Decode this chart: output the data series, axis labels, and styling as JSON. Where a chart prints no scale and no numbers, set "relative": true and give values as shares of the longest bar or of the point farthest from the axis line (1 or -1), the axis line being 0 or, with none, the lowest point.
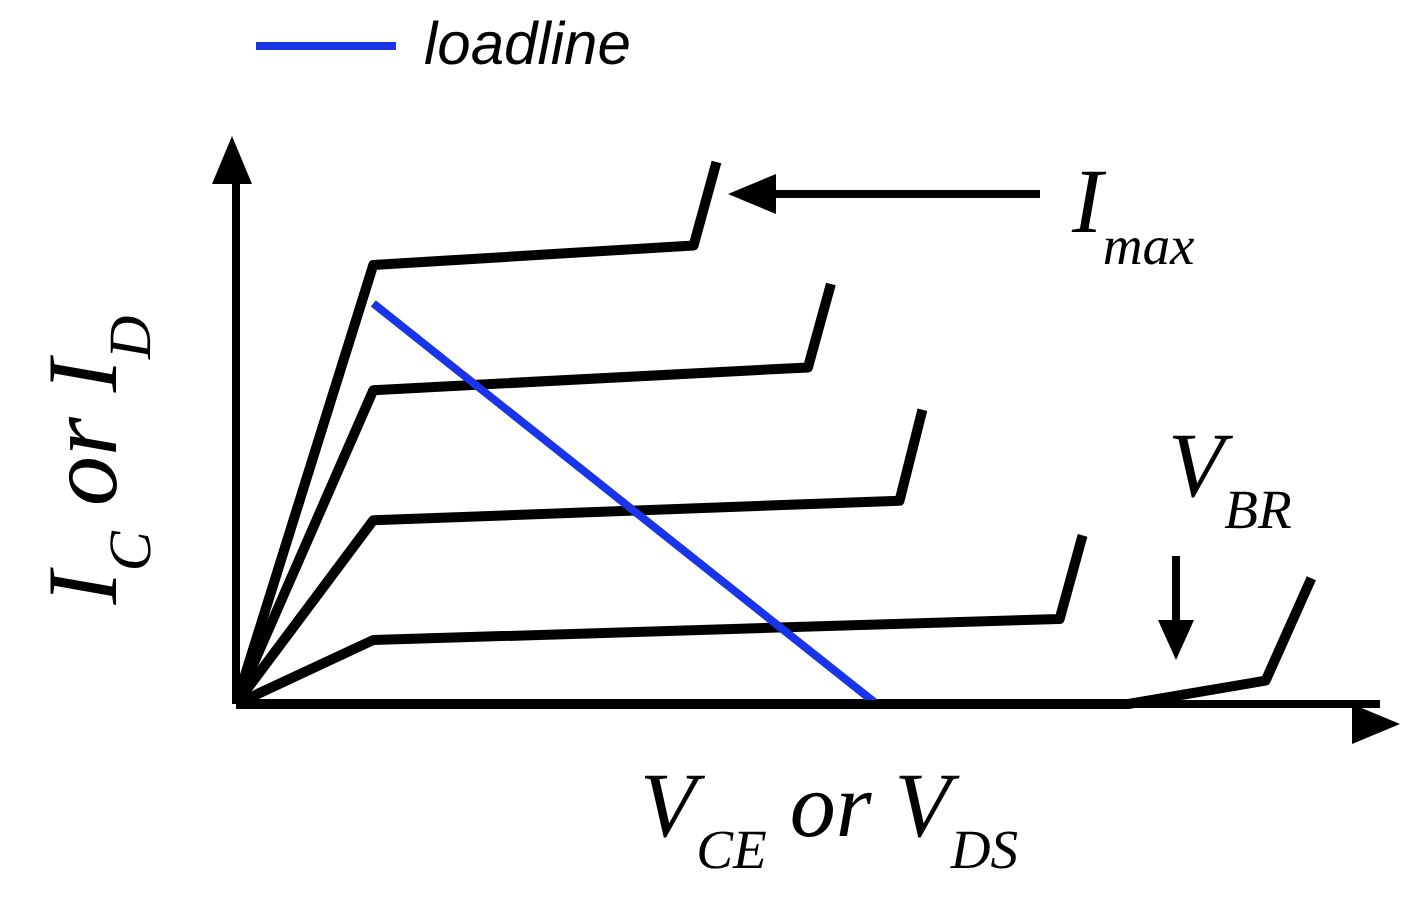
{
  "chart_data": {
    "type": "line",
    "relative": true,
    "xlabel": "V$_{CE}$ or V$_{DS}$",
    "ylabel": "I$_{C}$ or I$_{D}$",
    "legend": "top",
    "annotations": [
      "I$_{max}$",
      "V$_{BR}$"
    ],
    "categories": [
      null,
      null,
      null,
      null,
      null,
      null,
      null,
      null,
      null,
      null,
      null,
      null,
      null,
      null,
      null,
      null,
      null,
      null,
      null,
      null,
      null,
      null,
      null,
      null,
      null,
      null,
      null,
      null,
      null,
      null,
      null,
      null,
      null,
      null,
      null,
      null,
      null,
      null,
      null,
      null,
      null,
      null,
      null,
      null,
      null,
      null,
      null,
      null,
      null,
      null,
      null
    ],
    "series": [
      {
        "color": "#000000",
        "values": [
          0,
          null,
          null,
          null,
          null,
          null,
          0.81,
          null,
          null,
          null,
          null,
          null,
          null,
          null,
          null,
          null,
          null,
          null,
          null,
          null,
          0.846,
          1,
          null,
          null,
          null,
          null,
          null,
          null,
          null,
          null,
          null,
          null,
          null,
          null,
          null,
          null,
          null,
          null,
          null,
          null,
          null,
          null,
          null,
          null,
          null,
          null,
          null,
          null,
          null,
          null,
          null
        ]
      },
      {
        "color": "#000000",
        "values": [
          0,
          null,
          null,
          null,
          null,
          null,
          0.579,
          null,
          null,
          null,
          null,
          null,
          null,
          null,
          null,
          null,
          null,
          null,
          null,
          null,
          null,
          null,
          null,
          null,
          null,
          0.621,
          0.775,
          null,
          null,
          null,
          null,
          null,
          null,
          null,
          null,
          null,
          null,
          null,
          null,
          null,
          null,
          null,
          null,
          null,
          null,
          null,
          null,
          null,
          null,
          null,
          null
        ]
      },
      {
        "color": "#000000",
        "values": [
          0,
          null,
          null,
          null,
          null,
          null,
          0.339,
          null,
          null,
          null,
          null,
          null,
          null,
          null,
          null,
          null,
          null,
          null,
          null,
          null,
          null,
          null,
          null,
          null,
          null,
          null,
          null,
          null,
          null,
          0.375,
          0.543,
          null,
          null,
          null,
          null,
          null,
          null,
          null,
          null,
          null,
          null,
          null,
          null,
          null,
          null,
          null,
          null,
          null,
          null,
          null,
          null
        ]
      },
      {
        "color": "#000000",
        "values": [
          0,
          null,
          null,
          null,
          null,
          null,
          0.118,
          null,
          null,
          null,
          null,
          null,
          null,
          null,
          null,
          null,
          null,
          null,
          null,
          null,
          null,
          null,
          null,
          null,
          null,
          null,
          null,
          null,
          null,
          null,
          null,
          null,
          null,
          null,
          null,
          null,
          0.157,
          0.311,
          null,
          null,
          null,
          null,
          null,
          null,
          null,
          null,
          null,
          null,
          null,
          null,
          null
        ]
      },
      {
        "color": "#000000",
        "values": [
          0,
          null,
          null,
          null,
          null,
          null,
          null,
          null,
          null,
          null,
          null,
          null,
          null,
          null,
          null,
          null,
          null,
          null,
          null,
          null,
          null,
          null,
          null,
          null,
          null,
          null,
          null,
          null,
          null,
          null,
          null,
          null,
          null,
          null,
          null,
          null,
          null,
          null,
          null,
          0,
          null,
          null,
          null,
          null,
          null,
          0.043,
          null,
          0.232,
          null,
          null,
          null
        ]
      },
      {
        "name": "loadline",
        "color": "#1a35e8",
        "values": [
          null,
          null,
          null,
          null,
          null,
          null,
          0.739,
          null,
          null,
          null,
          null,
          null,
          null,
          null,
          null,
          null,
          null,
          null,
          null,
          null,
          null,
          null,
          null,
          null,
          null,
          null,
          null,
          null,
          0,
          null,
          null,
          null,
          null,
          null,
          null,
          null,
          null,
          null,
          null,
          null,
          null,
          null,
          null,
          null,
          null,
          null,
          null,
          null,
          null,
          null,
          null
        ]
      }
    ]
  }
}
